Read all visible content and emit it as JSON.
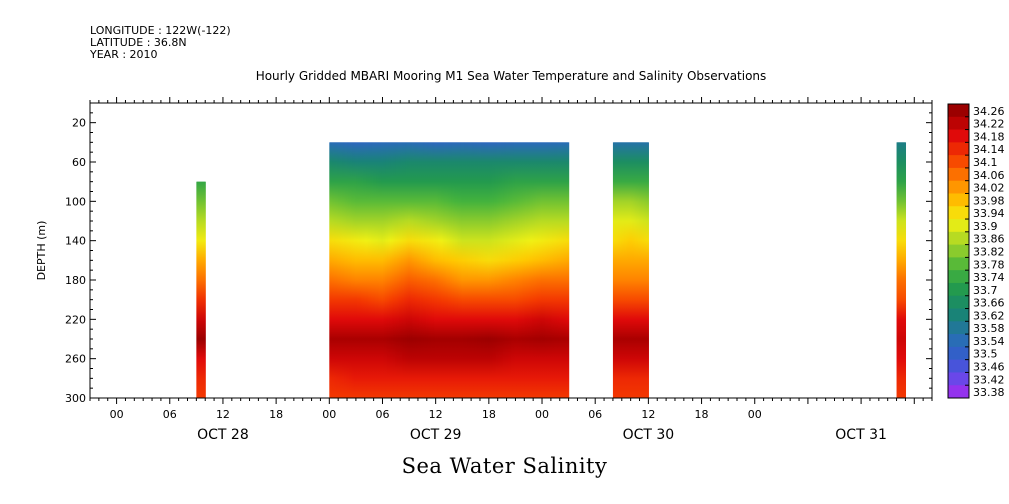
{
  "header": {
    "longitude": "LONGITUDE : 122W(-122)",
    "latitude": "LATITUDE : 36.8N",
    "year": "YEAR : 2010"
  },
  "chart_data": {
    "type": "heatmap",
    "title": "Hourly Gridded MBARI Mooring M1 Sea Water Temperature and Salinity Observations",
    "footer": "Sea Water Salinity",
    "xlabel": "",
    "ylabel": "DEPTH (m)",
    "x_range_hours": [
      -3,
      92
    ],
    "x_ticks": [
      {
        "hour": 0,
        "label": "00"
      },
      {
        "hour": 6,
        "label": "06"
      },
      {
        "hour": 12,
        "label": "12"
      },
      {
        "hour": 18,
        "label": "18"
      },
      {
        "hour": 24,
        "label": "00"
      },
      {
        "hour": 30,
        "label": "06"
      },
      {
        "hour": 36,
        "label": "12"
      },
      {
        "hour": 42,
        "label": "18"
      },
      {
        "hour": 48,
        "label": "00"
      },
      {
        "hour": 54,
        "label": "06"
      },
      {
        "hour": 60,
        "label": "12"
      },
      {
        "hour": 66,
        "label": "18"
      },
      {
        "hour": 72,
        "label": "00"
      }
    ],
    "date_labels": [
      {
        "hour": 12,
        "label": "OCT 28"
      },
      {
        "hour": 36,
        "label": "OCT 29"
      },
      {
        "hour": 60,
        "label": "OCT 30"
      },
      {
        "hour": 84,
        "label": "OCT 31"
      }
    ],
    "ylim": [
      0,
      300
    ],
    "y_ticks": [
      20,
      60,
      100,
      140,
      180,
      220,
      260,
      300
    ],
    "y_inverted": true,
    "colorbar": {
      "levels": [
        34.26,
        34.22,
        34.18,
        34.14,
        34.1,
        34.06,
        34.02,
        33.98,
        33.94,
        33.9,
        33.86,
        33.82,
        33.78,
        33.74,
        33.7,
        33.66,
        33.62,
        33.58,
        33.54,
        33.5,
        33.46,
        33.42,
        33.38
      ],
      "min": 33.38,
      "max": 34.3
    },
    "profile_depths": [
      40,
      60,
      80,
      100,
      120,
      140,
      160,
      180,
      200,
      220,
      240,
      260,
      280,
      300
    ],
    "segments": [
      {
        "x_start": 9,
        "x_end": 10,
        "columns": [
          {
            "hour": 9,
            "values": [
              null,
              null,
              33.75,
              33.82,
              33.88,
              33.94,
              34.02,
              34.08,
              34.15,
              34.22,
              34.28,
              34.2,
              34.16,
              34.14
            ]
          }
        ]
      },
      {
        "x_start": 24,
        "x_end": 51,
        "columns": [
          {
            "hour": 24,
            "values": [
              33.56,
              33.66,
              33.74,
              33.82,
              33.88,
              33.96,
              34.02,
              34.08,
              34.14,
              34.2,
              34.26,
              34.22,
              34.16,
              34.14
            ]
          },
          {
            "hour": 27,
            "values": [
              33.54,
              33.64,
              33.74,
              33.8,
              33.86,
              33.94,
              34.0,
              34.06,
              34.14,
              34.2,
              34.26,
              34.22,
              34.18,
              34.14
            ]
          },
          {
            "hour": 30,
            "values": [
              33.55,
              33.64,
              33.72,
              33.8,
              33.86,
              33.92,
              34.0,
              34.06,
              34.12,
              34.2,
              34.26,
              34.22,
              34.18,
              34.14
            ]
          },
          {
            "hour": 33,
            "values": [
              33.56,
              33.66,
              33.72,
              33.8,
              33.88,
              33.96,
              34.04,
              34.1,
              34.16,
              34.22,
              34.28,
              34.24,
              34.18,
              34.14
            ]
          },
          {
            "hour": 36,
            "values": [
              33.54,
              33.66,
              33.72,
              33.8,
              33.86,
              33.94,
              34.0,
              34.08,
              34.14,
              34.2,
              34.27,
              34.24,
              34.18,
              34.14
            ]
          },
          {
            "hour": 39,
            "values": [
              33.55,
              33.66,
              33.72,
              33.78,
              33.84,
              33.9,
              33.98,
              34.04,
              34.12,
              34.2,
              34.27,
              34.24,
              34.18,
              34.14
            ]
          },
          {
            "hour": 42,
            "values": [
              33.54,
              33.66,
              33.72,
              33.78,
              33.84,
              33.9,
              33.96,
              34.04,
              34.12,
              34.2,
              34.28,
              34.24,
              34.18,
              34.14
            ]
          },
          {
            "hour": 45,
            "values": [
              33.55,
              33.66,
              33.74,
              33.8,
              33.86,
              33.92,
              33.98,
              34.06,
              34.12,
              34.2,
              34.26,
              34.22,
              34.18,
              34.14
            ]
          },
          {
            "hour": 48,
            "values": [
              33.55,
              33.66,
              33.74,
              33.82,
              33.88,
              33.94,
              34.0,
              34.08,
              34.14,
              34.22,
              34.27,
              34.22,
              34.18,
              34.14
            ]
          },
          {
            "hour": 51,
            "values": [
              33.56,
              33.66,
              33.74,
              33.82,
              33.88,
              33.96,
              34.02,
              34.08,
              34.14,
              34.2,
              34.26,
              34.22,
              34.18,
              34.14
            ]
          }
        ]
      },
      {
        "x_start": 56,
        "x_end": 60,
        "columns": [
          {
            "hour": 56,
            "values": [
              33.58,
              33.68,
              33.76,
              33.86,
              33.92,
              33.96,
              34.02,
              34.06,
              34.12,
              34.2,
              34.26,
              34.22,
              34.16,
              34.14
            ]
          },
          {
            "hour": 58,
            "values": [
              33.58,
              33.68,
              33.76,
              33.86,
              33.92,
              33.98,
              34.02,
              34.06,
              34.12,
              34.2,
              34.26,
              34.22,
              34.16,
              34.14
            ]
          },
          {
            "hour": 60,
            "values": [
              33.58,
              33.68,
              33.76,
              33.84,
              33.9,
              33.96,
              34.02,
              34.06,
              34.12,
              34.2,
              34.26,
              34.22,
              34.16,
              34.14
            ]
          }
        ]
      },
      {
        "x_start": 88,
        "x_end": 89,
        "columns": [
          {
            "hour": 88,
            "values": [
              33.62,
              33.68,
              33.74,
              33.82,
              33.9,
              33.96,
              34.02,
              34.08,
              34.12,
              34.2,
              34.22,
              34.2,
              34.16,
              34.14
            ]
          }
        ]
      }
    ]
  }
}
